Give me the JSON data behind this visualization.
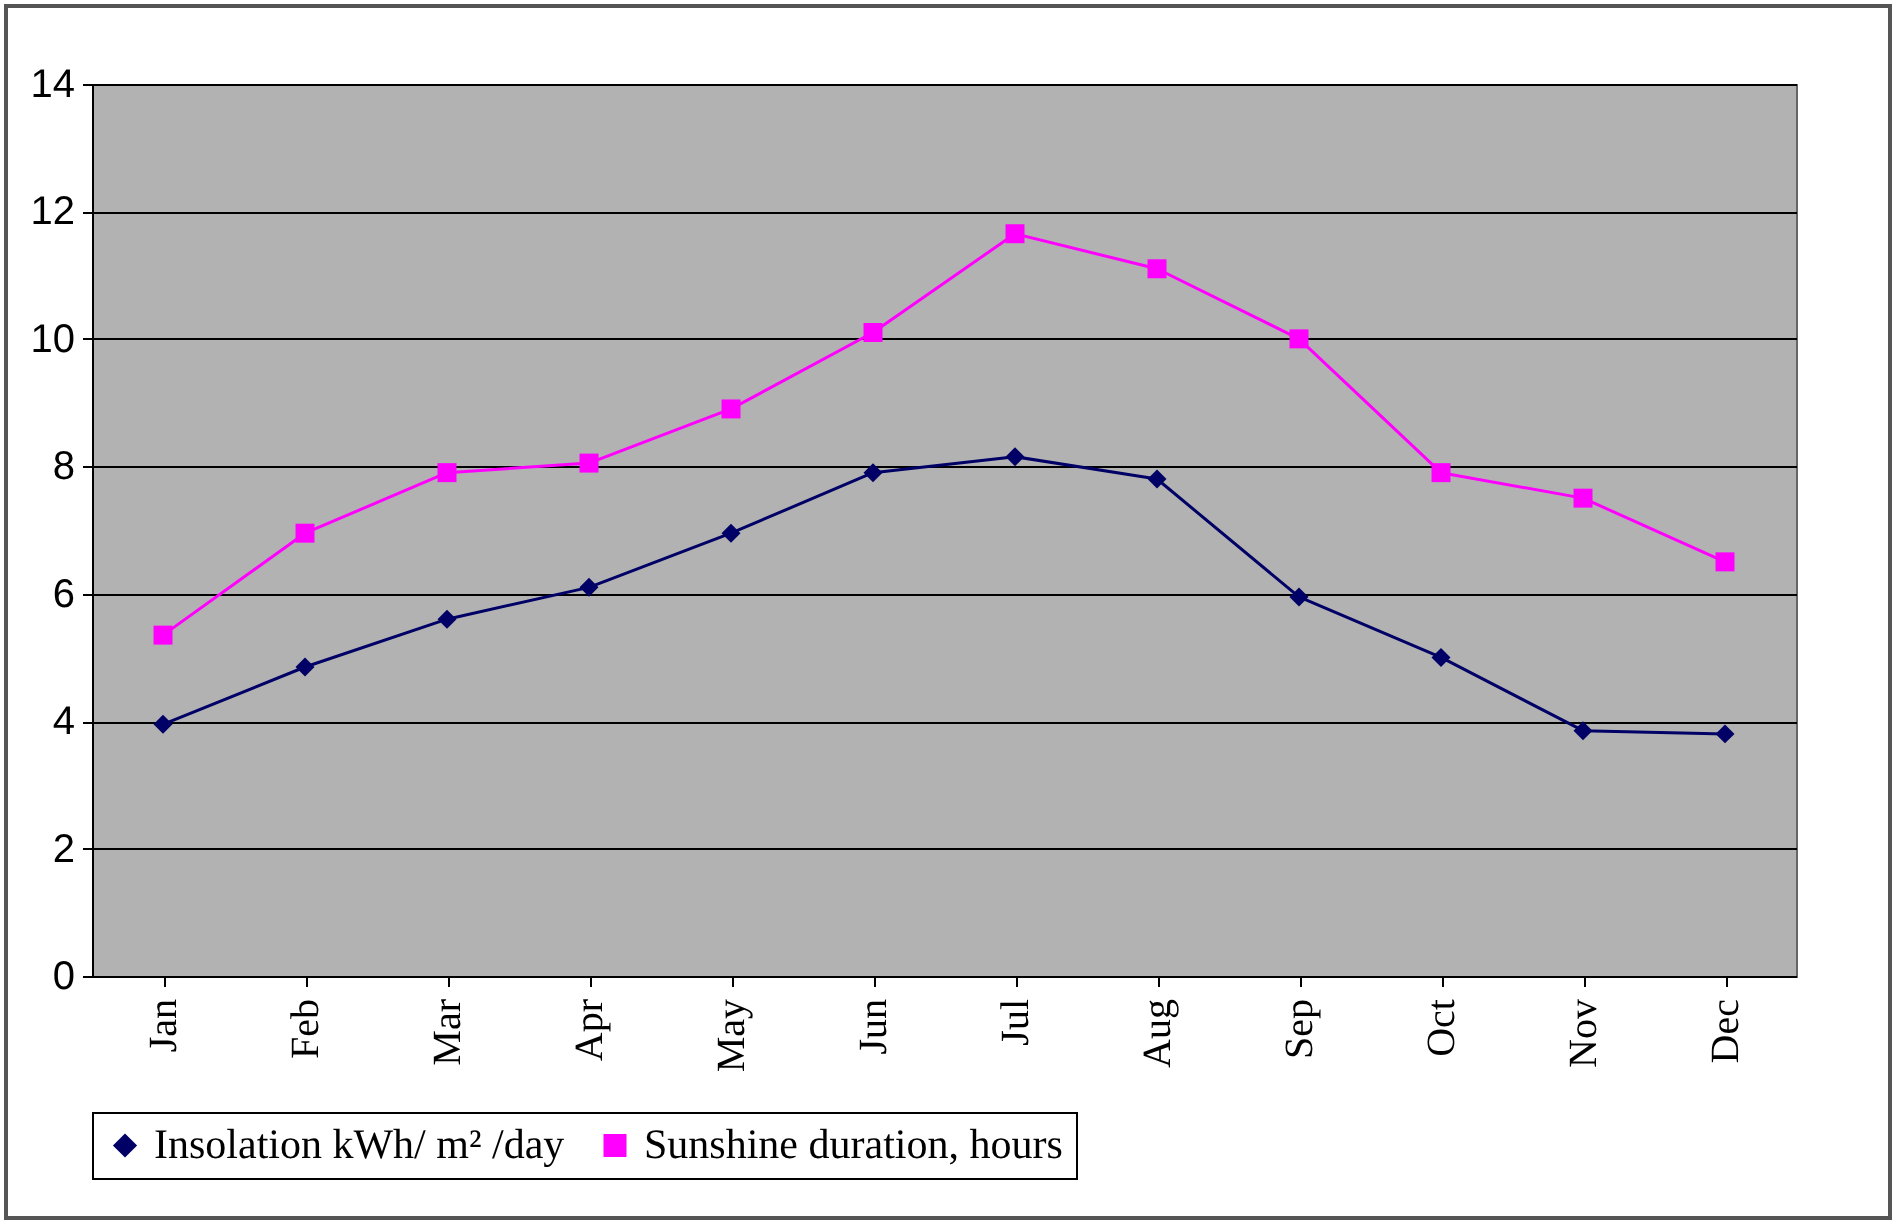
{
  "chart_data": {
    "type": "line",
    "categories": [
      "Jan",
      "Feb",
      "Mar",
      "Apr",
      "May",
      "Jun",
      "Jul",
      "Aug",
      "Sep",
      "Oct",
      "Nov",
      "Dec"
    ],
    "series": [
      {
        "name": "Insolation kWh/ m² /day",
        "color": "#000066",
        "marker": "diamond",
        "values": [
          3.95,
          4.85,
          5.6,
          6.1,
          6.95,
          7.9,
          8.15,
          7.8,
          5.95,
          5.0,
          3.85,
          3.8
        ]
      },
      {
        "name": "Sunshine duration, hours",
        "color": "#ff00ff",
        "marker": "square",
        "values": [
          5.35,
          6.95,
          7.9,
          8.05,
          8.9,
          10.1,
          11.65,
          11.1,
          10.0,
          7.9,
          7.5,
          6.5
        ]
      }
    ],
    "ylim": [
      0,
      14
    ],
    "yticks": [
      0,
      2,
      4,
      6,
      8,
      10,
      12,
      14
    ],
    "grid": "y",
    "legend": "bottom",
    "line_style": "solid"
  }
}
